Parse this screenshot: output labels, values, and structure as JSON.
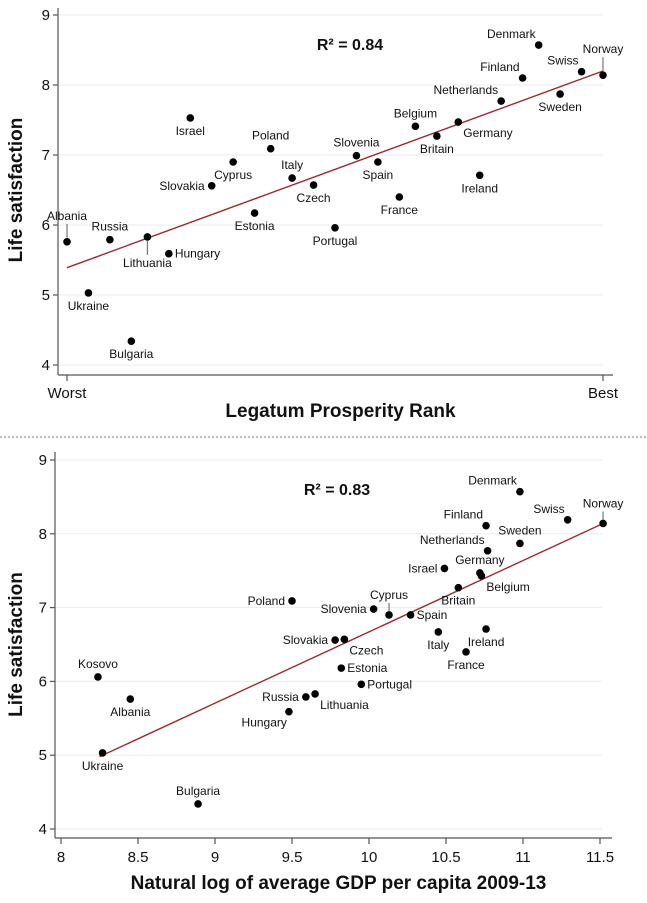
{
  "chart_data": [
    {
      "type": "scatter",
      "title": "",
      "annotation": "R² = 0.84",
      "xlabel": "Legatum Prosperity Rank",
      "ylabel": "Life satisfaction",
      "xlim": [
        0,
        1
      ],
      "ylim": [
        4,
        9
      ],
      "yticks": [
        4,
        5,
        6,
        7,
        8,
        9
      ],
      "xticks": [
        {
          "value": 0,
          "label": "Worst"
        },
        {
          "value": 1,
          "label": "Best"
        }
      ],
      "grid": "horizontal",
      "fit_line": {
        "x": [
          0,
          1
        ],
        "y": [
          5.39,
          8.2
        ]
      },
      "points": [
        {
          "label": "Albania",
          "x": 0.0,
          "y": 5.76,
          "pos": "leader-up"
        },
        {
          "label": "Ukraine",
          "x": 0.04,
          "y": 5.03,
          "pos": "below"
        },
        {
          "label": "Russia",
          "x": 0.08,
          "y": 5.79,
          "pos": "above"
        },
        {
          "label": "Bulgaria",
          "x": 0.12,
          "y": 4.34,
          "pos": "below"
        },
        {
          "label": "Lithuania",
          "x": 0.15,
          "y": 5.83,
          "pos": "leader-down"
        },
        {
          "label": "Hungary",
          "x": 0.19,
          "y": 5.59,
          "pos": "right"
        },
        {
          "label": "Israel",
          "x": 0.23,
          "y": 7.53,
          "pos": "below"
        },
        {
          "label": "Slovakia",
          "x": 0.27,
          "y": 6.56,
          "pos": "left"
        },
        {
          "label": "Cyprus",
          "x": 0.31,
          "y": 6.9,
          "pos": "below"
        },
        {
          "label": "Estonia",
          "x": 0.35,
          "y": 6.17,
          "pos": "below"
        },
        {
          "label": "Poland",
          "x": 0.38,
          "y": 7.09,
          "pos": "above"
        },
        {
          "label": "Italy",
          "x": 0.42,
          "y": 6.67,
          "pos": "above"
        },
        {
          "label": "Czech",
          "x": 0.46,
          "y": 6.57,
          "pos": "below"
        },
        {
          "label": "Portugal",
          "x": 0.5,
          "y": 5.96,
          "pos": "below"
        },
        {
          "label": "Slovenia",
          "x": 0.54,
          "y": 6.99,
          "pos": "above"
        },
        {
          "label": "Spain",
          "x": 0.58,
          "y": 6.9,
          "pos": "below"
        },
        {
          "label": "France",
          "x": 0.62,
          "y": 6.4,
          "pos": "below"
        },
        {
          "label": "Belgium",
          "x": 0.65,
          "y": 7.41,
          "pos": "above"
        },
        {
          "label": "Britain",
          "x": 0.69,
          "y": 7.27,
          "pos": "below"
        },
        {
          "label": "Germany",
          "x": 0.73,
          "y": 7.47,
          "pos": "below-right"
        },
        {
          "label": "Ireland",
          "x": 0.77,
          "y": 6.71,
          "pos": "below"
        },
        {
          "label": "Netherlands",
          "x": 0.81,
          "y": 7.77,
          "pos": "above-left"
        },
        {
          "label": "Finland",
          "x": 0.85,
          "y": 8.1,
          "pos": "above-left"
        },
        {
          "label": "Denmark",
          "x": 0.88,
          "y": 8.57,
          "pos": "above-left"
        },
        {
          "label": "Sweden",
          "x": 0.92,
          "y": 7.87,
          "pos": "below"
        },
        {
          "label": "Swiss",
          "x": 0.96,
          "y": 8.19,
          "pos": "above-left"
        },
        {
          "label": "Norway",
          "x": 1.0,
          "y": 8.14,
          "pos": "leader-up"
        }
      ]
    },
    {
      "type": "scatter",
      "title": "",
      "annotation": "R² = 0.83",
      "xlabel": "Natural log of average GDP per capita 2009-13",
      "ylabel": "Life satisfaction",
      "xlim": [
        7.93,
        11.58
      ],
      "ylim": [
        4,
        9
      ],
      "yticks": [
        4,
        5,
        6,
        7,
        8,
        9
      ],
      "xticks": [
        {
          "value": 8,
          "label": "8"
        },
        {
          "value": 8.5,
          "label": "8.5"
        },
        {
          "value": 9,
          "label": "9"
        },
        {
          "value": 9.5,
          "label": "9.5"
        },
        {
          "value": 10,
          "label": "10"
        },
        {
          "value": 10.5,
          "label": "10.5"
        },
        {
          "value": 11,
          "label": "11"
        },
        {
          "value": 11.5,
          "label": "11.5"
        }
      ],
      "grid": "horizontal",
      "fit_line": {
        "x": [
          8.25,
          11.52
        ],
        "y": [
          4.98,
          8.14
        ]
      },
      "points": [
        {
          "label": "Kosovo",
          "x": 8.24,
          "y": 6.06,
          "pos": "above"
        },
        {
          "label": "Ukraine",
          "x": 8.27,
          "y": 5.03,
          "pos": "below"
        },
        {
          "label": "Albania",
          "x": 8.45,
          "y": 5.76,
          "pos": "below"
        },
        {
          "label": "Bulgaria",
          "x": 8.89,
          "y": 4.34,
          "pos": "above"
        },
        {
          "label": "Hungary",
          "x": 9.48,
          "y": 5.59,
          "pos": "below-left"
        },
        {
          "label": "Poland",
          "x": 9.5,
          "y": 7.09,
          "pos": "left"
        },
        {
          "label": "Russia",
          "x": 9.59,
          "y": 5.79,
          "pos": "left"
        },
        {
          "label": "Lithuania",
          "x": 9.65,
          "y": 5.83,
          "pos": "below-right"
        },
        {
          "label": "Slovakia",
          "x": 9.78,
          "y": 6.56,
          "pos": "left"
        },
        {
          "label": "Czech",
          "x": 9.84,
          "y": 6.57,
          "pos": "below-right"
        },
        {
          "label": "Estonia",
          "x": 9.82,
          "y": 6.18,
          "pos": "right"
        },
        {
          "label": "Portugal",
          "x": 9.95,
          "y": 5.96,
          "pos": "right"
        },
        {
          "label": "Slovenia",
          "x": 10.03,
          "y": 6.98,
          "pos": "left"
        },
        {
          "label": "Cyprus",
          "x": 10.13,
          "y": 6.9,
          "pos": "leader-up"
        },
        {
          "label": "Spain",
          "x": 10.27,
          "y": 6.9,
          "pos": "right"
        },
        {
          "label": "Italy",
          "x": 10.45,
          "y": 6.67,
          "pos": "below"
        },
        {
          "label": "Israel",
          "x": 10.49,
          "y": 7.53,
          "pos": "left"
        },
        {
          "label": "Britain",
          "x": 10.58,
          "y": 7.27,
          "pos": "below"
        },
        {
          "label": "France",
          "x": 10.63,
          "y": 6.4,
          "pos": "below"
        },
        {
          "label": "Germany",
          "x": 10.72,
          "y": 7.47,
          "pos": "above"
        },
        {
          "label": "Belgium",
          "x": 10.73,
          "y": 7.43,
          "pos": "below-right"
        },
        {
          "label": "Finland",
          "x": 10.76,
          "y": 8.11,
          "pos": "above-left"
        },
        {
          "label": "Netherlands",
          "x": 10.77,
          "y": 7.77,
          "pos": "above-left"
        },
        {
          "label": "Ireland",
          "x": 10.76,
          "y": 6.71,
          "pos": "below"
        },
        {
          "label": "Sweden",
          "x": 10.98,
          "y": 7.87,
          "pos": "above"
        },
        {
          "label": "Denmark",
          "x": 10.98,
          "y": 8.57,
          "pos": "above-left"
        },
        {
          "label": "Swiss",
          "x": 11.29,
          "y": 8.19,
          "pos": "above-left"
        },
        {
          "label": "Norway",
          "x": 11.52,
          "y": 8.14,
          "pos": "leader-up"
        }
      ]
    }
  ]
}
